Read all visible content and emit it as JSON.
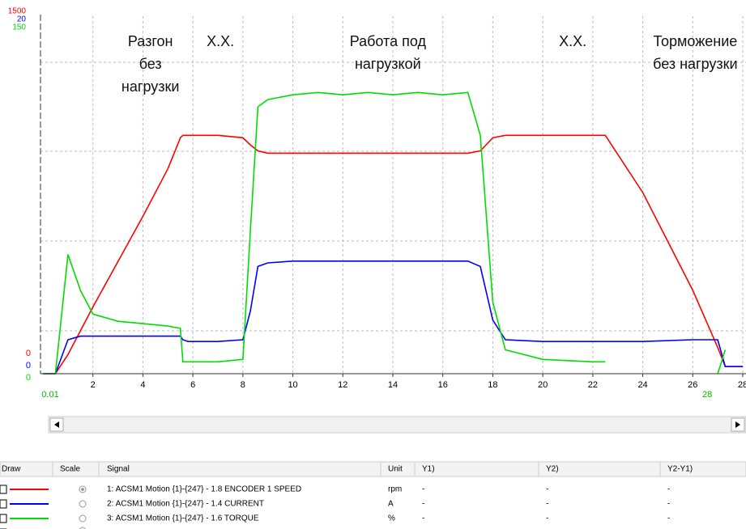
{
  "chart_data": {
    "type": "line",
    "x": [
      0.01,
      0.5,
      1,
      1.5,
      2,
      3,
      4,
      5,
      5.5,
      5.6,
      5.8,
      6,
      7,
      8,
      8.3,
      8.6,
      9,
      10,
      11,
      12,
      13,
      14,
      15,
      16,
      17,
      17.5,
      18,
      18.5,
      20,
      22,
      22.5,
      24,
      26,
      27,
      27.3,
      28
    ],
    "xlim": [
      0,
      28
    ],
    "xticks": [
      2,
      4,
      6,
      8,
      10,
      12,
      14,
      16,
      18,
      20,
      22,
      24,
      26,
      28
    ],
    "cursor_labels": [
      0.01,
      28
    ],
    "grid": true,
    "series": [
      {
        "name": "1: ACSM1 Motion {1}-{247} - 1.8 ENCODER 1 SPEED",
        "color": "#ff0000",
        "ylim": [
          0,
          1500
        ],
        "yticks": [
          0,
          1500
        ],
        "values": [
          0,
          0,
          80,
          180,
          280,
          470,
          660,
          860,
          990,
          1000,
          1000,
          1000,
          1000,
          990,
          960,
          935,
          925,
          925,
          925,
          925,
          925,
          925,
          925,
          925,
          925,
          935,
          990,
          1000,
          1000,
          1000,
          1000,
          760,
          350,
          110,
          30,
          30
        ]
      },
      {
        "name": "2: ACSM1 Motion {1}-{247} - 1.4 CURRENT",
        "color": "#0000ff",
        "ylim": [
          0,
          20
        ],
        "yticks": [
          0,
          20
        ],
        "values": [
          0,
          0,
          1.9,
          2.1,
          2.1,
          2.1,
          2.1,
          2.1,
          2.1,
          1.9,
          1.8,
          1.8,
          1.8,
          1.9,
          3.5,
          6.0,
          6.2,
          6.3,
          6.3,
          6.3,
          6.3,
          6.3,
          6.3,
          6.3,
          6.3,
          6.0,
          3.0,
          1.9,
          1.8,
          1.8,
          1.8,
          1.8,
          1.9,
          1.9,
          0.4,
          0.4
        ]
      },
      {
        "name": "3: ACSM1 Motion {1}-{247} - 1.6 TORQUE",
        "color": "#00dd00",
        "ylim": [
          0,
          150
        ],
        "yticks": [
          0,
          150
        ],
        "values": [
          0,
          0,
          50,
          35,
          25,
          22,
          21,
          20,
          19,
          5,
          5,
          5,
          5,
          6,
          60,
          112,
          115,
          117,
          118,
          117,
          118,
          117,
          118,
          117,
          118,
          100,
          30,
          10,
          6,
          5,
          5,
          null,
          null,
          0,
          10,
          null
        ]
      }
    ],
    "annotations": [
      {
        "x": 4.3,
        "lines": [
          "Разгон",
          "без",
          "нагрузки"
        ]
      },
      {
        "x": 7.1,
        "lines": [
          "Х.Х."
        ]
      },
      {
        "x": 13.8,
        "lines": [
          "Работа под",
          "нагрузкой"
        ]
      },
      {
        "x": 21.2,
        "lines": [
          "Х.Х."
        ]
      },
      {
        "x": 26.1,
        "lines": [
          "Торможение",
          "без нагрузки"
        ]
      }
    ]
  },
  "table": {
    "columns": [
      "Draw",
      "Scale",
      "Signal",
      "Unit",
      "Y1)",
      "Y2)",
      "Y2-Y1)"
    ],
    "colors": [
      "#ff0000",
      "#0000ff",
      "#00dd00",
      "#ff9900"
    ],
    "rows": [
      [
        "1: ACSM1 Motion {1}-{247} - 1.8 ENCODER 1 SPEED",
        "rpm",
        "-",
        "-",
        "-"
      ],
      [
        "2: ACSM1 Motion {1}-{247} - 1.4 CURRENT",
        "A",
        "-",
        "-",
        "-"
      ],
      [
        "3: ACSM1 Motion {1}-{247} - 1.6 TORQUE",
        "%",
        "-",
        "-",
        "-"
      ],
      [
        "-",
        null,
        "-",
        "-",
        "-"
      ]
    ]
  }
}
